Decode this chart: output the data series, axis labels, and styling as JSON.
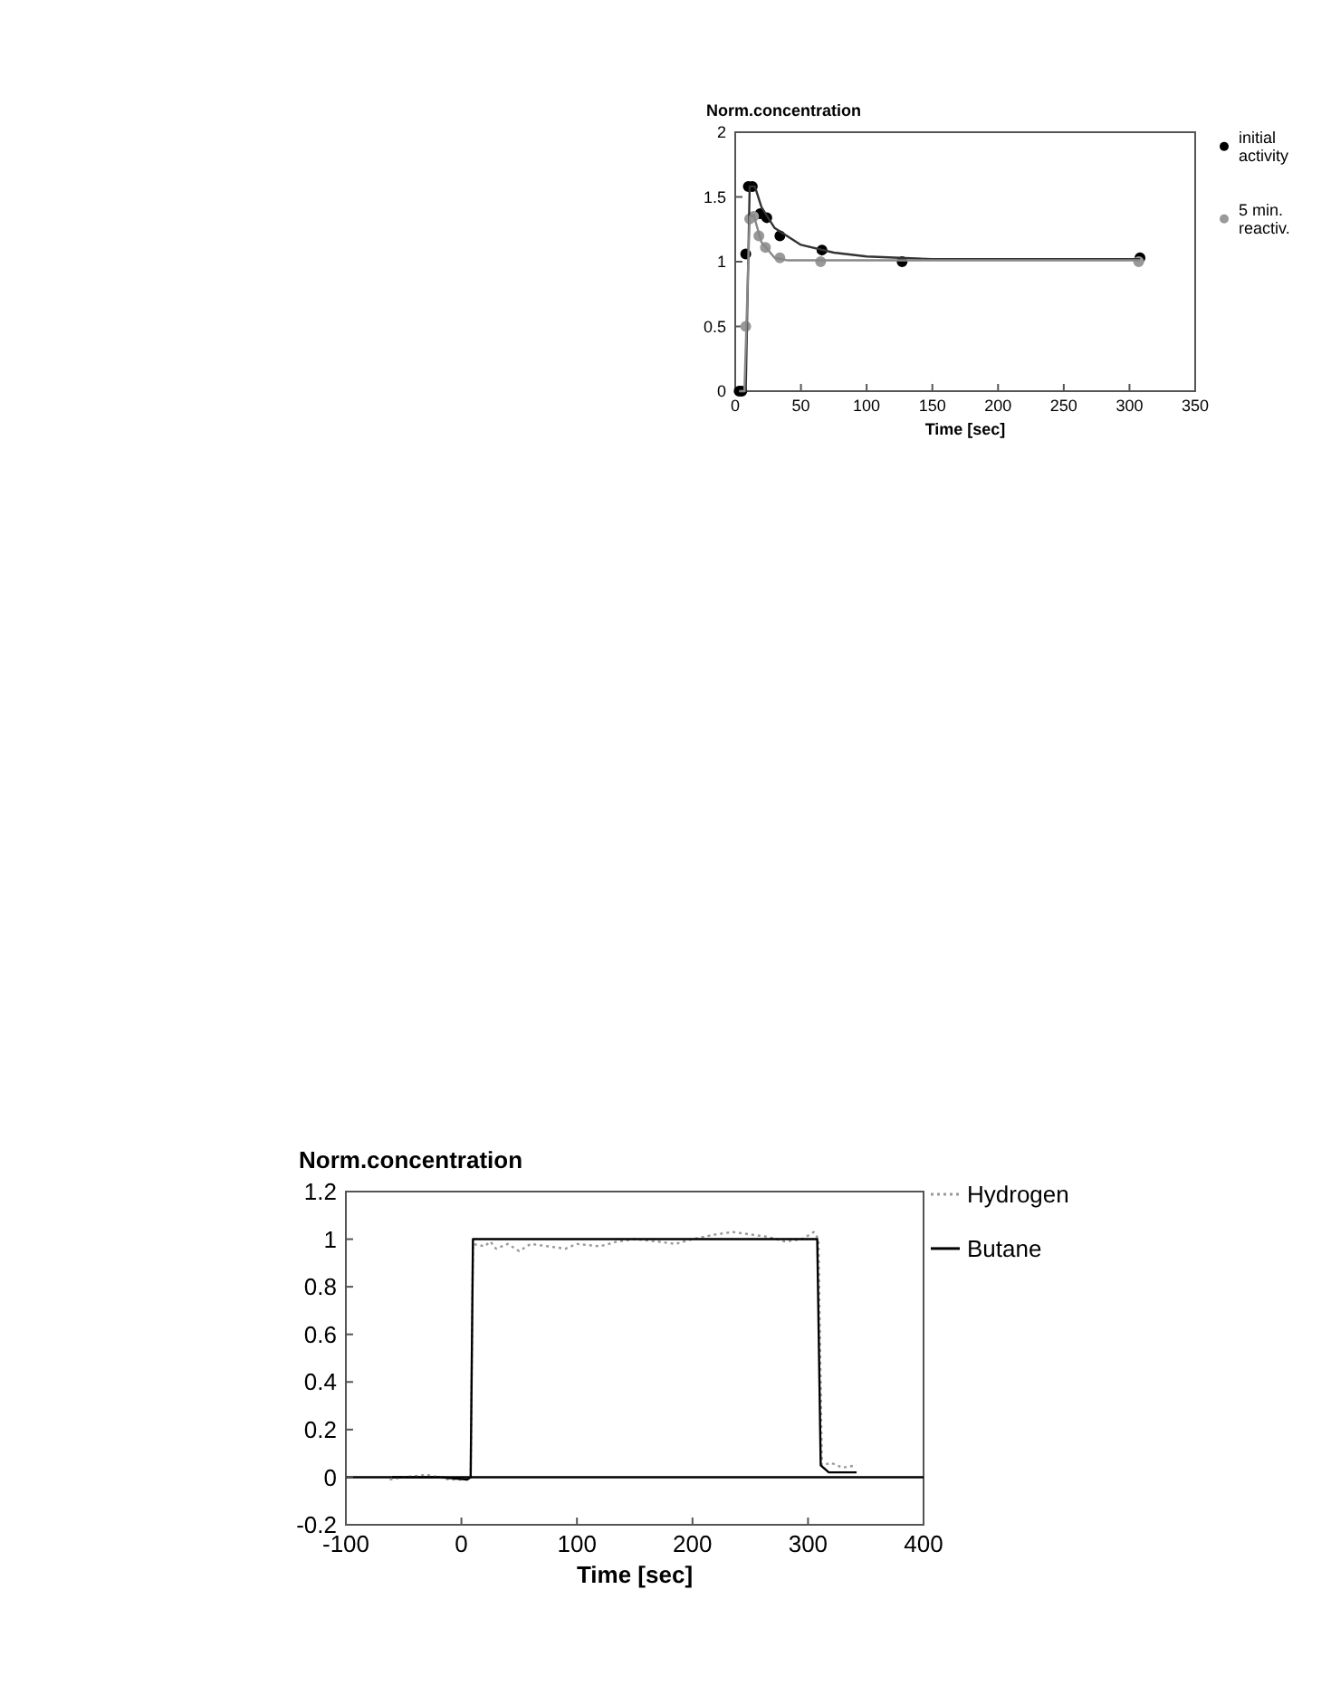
{
  "chart_data": [
    {
      "type": "scatter",
      "ylabel": "Norm.concentration",
      "xlabel": "Time [sec]",
      "xlim": [
        0,
        350
      ],
      "xticks": [
        0,
        50,
        100,
        150,
        200,
        250,
        300,
        350
      ],
      "ylim": [
        0,
        2
      ],
      "yticks": [
        0,
        0.5,
        1,
        1.5,
        2
      ],
      "legend": "right",
      "series": [
        {
          "name": "initial activity",
          "marker": "circle",
          "color": "#000000",
          "x": [
            3,
            5,
            8,
            10,
            13,
            19,
            24,
            34,
            66,
            127,
            308
          ],
          "values": [
            0,
            0,
            1.06,
            1.58,
            1.58,
            1.37,
            1.34,
            1.2,
            1.09,
            1.0,
            1.03
          ]
        },
        {
          "name": "5 min. reactiv.",
          "marker": "circle",
          "color": "#999999",
          "x": [
            8,
            11,
            14,
            18,
            23,
            34,
            65,
            307
          ],
          "values": [
            0.5,
            1.33,
            1.35,
            1.2,
            1.11,
            1.03,
            1.0,
            1.0
          ]
        },
        {
          "type": "line",
          "color": "#333333",
          "x": [
            3,
            8,
            11,
            15,
            20,
            30,
            50,
            75,
            100,
            150,
            308
          ],
          "values": [
            0,
            0,
            1.58,
            1.58,
            1.42,
            1.26,
            1.13,
            1.07,
            1.04,
            1.02,
            1.02
          ]
        },
        {
          "type": "line",
          "color": "#888888",
          "x": [
            3,
            7,
            11,
            14,
            20,
            30,
            40,
            308
          ],
          "values": [
            0,
            0,
            1.35,
            1.36,
            1.15,
            1.03,
            1.01,
            1.01
          ]
        }
      ]
    },
    {
      "type": "line",
      "ylabel": "Norm.concentration",
      "xlabel": "Time [sec]",
      "xlim": [
        -100,
        400
      ],
      "xticks": [
        -100,
        0,
        100,
        200,
        300,
        400
      ],
      "ylim": [
        -0.2,
        1.2
      ],
      "yticks": [
        -0.2,
        0,
        0.2,
        0.4,
        0.6,
        0.8,
        1,
        1.2
      ],
      "legend": "right",
      "ref_lines": [
        {
          "axis": "y",
          "value": 0,
          "color": "#000000"
        }
      ],
      "series": [
        {
          "name": "Hydrogen",
          "color": "#999999",
          "line_style": "dotted",
          "x": [
            -62,
            -50,
            -30,
            -10,
            5,
            8,
            10,
            20,
            25,
            30,
            40,
            50,
            60,
            75,
            90,
            100,
            120,
            135,
            150,
            170,
            185,
            200,
            220,
            235,
            250,
            265,
            280,
            295,
            305,
            309,
            312,
            320,
            330,
            342
          ],
          "values": [
            -0.01,
            0,
            0.01,
            -0.01,
            -0.01,
            0,
            0.98,
            0.97,
            0.99,
            0.96,
            0.98,
            0.95,
            0.98,
            0.97,
            0.96,
            0.98,
            0.97,
            0.99,
            1.0,
            0.99,
            0.98,
            1.0,
            1.02,
            1.03,
            1.02,
            1.01,
            0.99,
            1.0,
            1.03,
            1.0,
            0.05,
            0.06,
            0.04,
            0.05
          ]
        },
        {
          "name": "Butane",
          "color": "#000000",
          "x": [
            -60,
            -20,
            5,
            8,
            10,
            50,
            100,
            200,
            308,
            311,
            318,
            342
          ],
          "values": [
            0,
            0,
            -0.01,
            0,
            1.0,
            1.0,
            1.0,
            1.0,
            1.0,
            0.05,
            0.02,
            0.02
          ]
        }
      ]
    }
  ]
}
